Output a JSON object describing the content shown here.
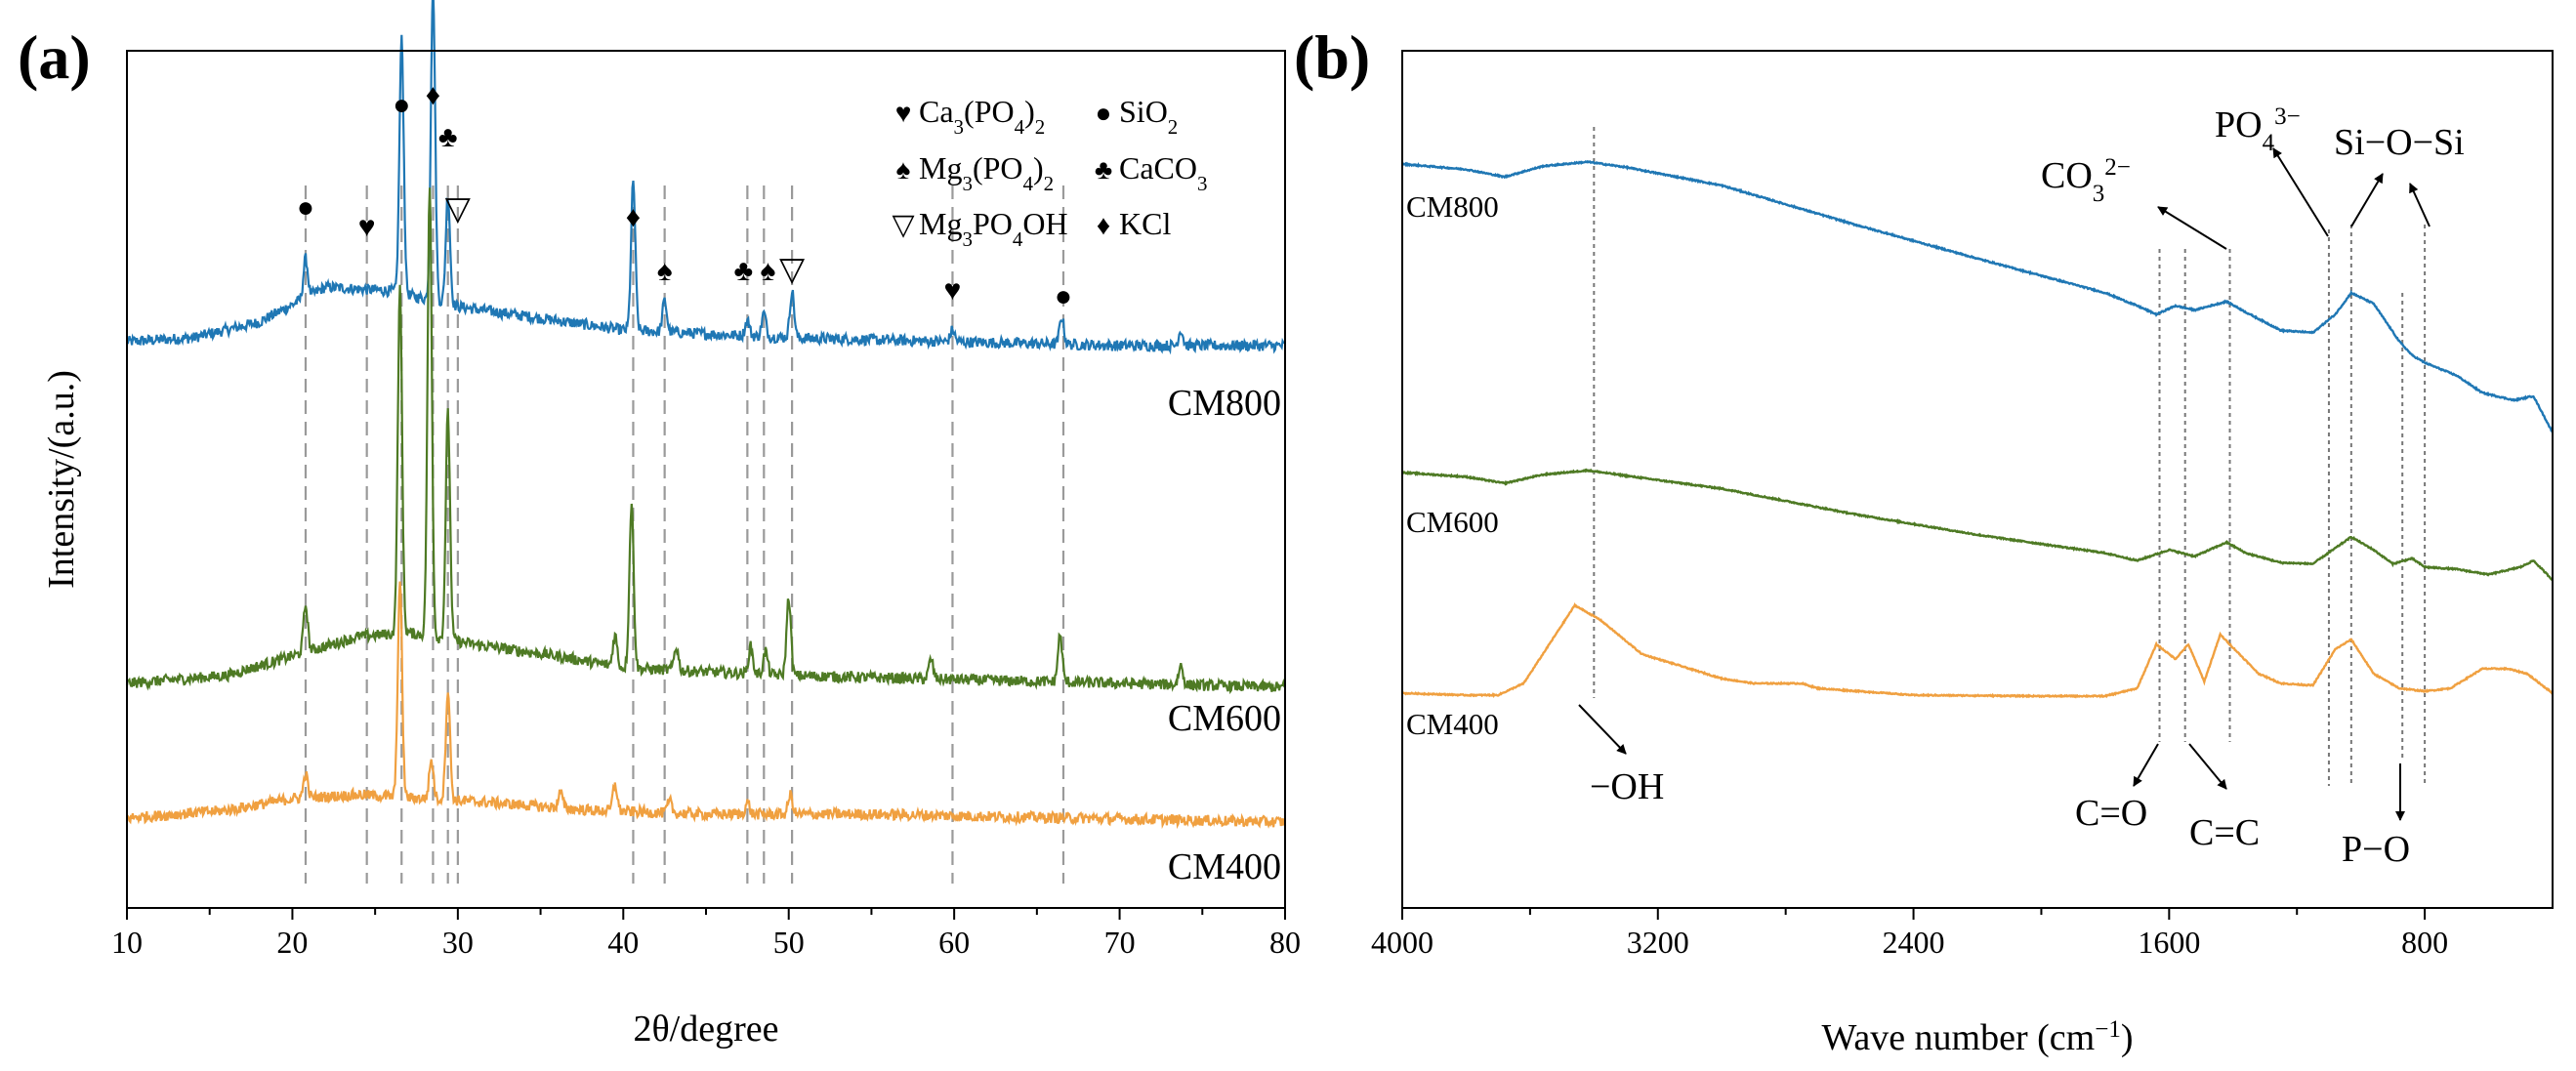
{
  "chart_data": [
    {
      "panel": "(a)",
      "type": "line",
      "xlabel": "2θ/degree",
      "ylabel": "Intensity/(a.u.)",
      "xlim": [
        10,
        80
      ],
      "xticks": [
        10,
        20,
        30,
        40,
        50,
        60,
        70,
        80
      ],
      "yticks_shown": false,
      "grid": false,
      "series": [
        {
          "name": "CM800",
          "color": "#1f77b4",
          "baseline": [
            [
              10,
              0.0
            ],
            [
              14,
              0.01
            ],
            [
              18,
              0.05
            ],
            [
              22,
              0.14
            ],
            [
              26,
              0.13
            ],
            [
              30,
              0.09
            ],
            [
              35,
              0.06
            ],
            [
              40,
              0.03
            ],
            [
              45,
              0.02
            ],
            [
              50,
              0.01
            ],
            [
              60,
              0.0
            ],
            [
              70,
              -0.01
            ],
            [
              80,
              -0.01
            ]
          ],
          "peaks": [
            [
              20.8,
              0.1
            ],
            [
              26.6,
              0.65
            ],
            [
              28.5,
              0.8
            ],
            [
              29.4,
              0.28
            ],
            [
              40.6,
              0.38
            ],
            [
              42.5,
              0.08
            ],
            [
              47.5,
              0.04
            ],
            [
              48.5,
              0.06
            ],
            [
              50.2,
              0.12
            ],
            [
              59.9,
              0.03
            ],
            [
              66.5,
              0.07
            ],
            [
              73.7,
              0.04
            ]
          ]
        },
        {
          "name": "CM600",
          "color": "#4e7a24",
          "baseline": [
            [
              10,
              0.0
            ],
            [
              16,
              0.02
            ],
            [
              20,
              0.07
            ],
            [
              24,
              0.12
            ],
            [
              27,
              0.13
            ],
            [
              31,
              0.1
            ],
            [
              36,
              0.07
            ],
            [
              40,
              0.04
            ],
            [
              45,
              0.03
            ],
            [
              50,
              0.02
            ],
            [
              60,
              0.01
            ],
            [
              70,
              0.0
            ],
            [
              80,
              -0.01
            ]
          ],
          "peaks": [
            [
              20.8,
              0.12
            ],
            [
              26.5,
              0.88
            ],
            [
              28.3,
              1.15
            ],
            [
              29.4,
              0.58
            ],
            [
              39.5,
              0.08
            ],
            [
              40.5,
              0.42
            ],
            [
              43.2,
              0.06
            ],
            [
              47.7,
              0.07
            ],
            [
              48.6,
              0.06
            ],
            [
              50.0,
              0.2
            ],
            [
              58.6,
              0.05
            ],
            [
              66.4,
              0.12
            ],
            [
              73.7,
              0.05
            ]
          ]
        },
        {
          "name": "CM400",
          "color": "#f0a040",
          "baseline": [
            [
              10,
              0.0
            ],
            [
              16,
              0.02
            ],
            [
              20,
              0.05
            ],
            [
              24,
              0.06
            ],
            [
              28,
              0.05
            ],
            [
              32,
              0.04
            ],
            [
              38,
              0.02
            ],
            [
              45,
              0.01
            ],
            [
              55,
              0.01
            ],
            [
              80,
              -0.01
            ]
          ],
          "peaks": [
            [
              20.8,
              0.06
            ],
            [
              26.5,
              0.55
            ],
            [
              28.4,
              0.1
            ],
            [
              29.4,
              0.28
            ],
            [
              36.2,
              0.04
            ],
            [
              39.5,
              0.07
            ],
            [
              42.8,
              0.03
            ],
            [
              47.5,
              0.03
            ],
            [
              50.1,
              0.05
            ]
          ]
        }
      ],
      "reference_lines": [
        {
          "x": 20.8,
          "symbol": "●",
          "phase": "SiO2"
        },
        {
          "x": 24.5,
          "symbol": "♥",
          "phase": "Ca3(PO4)2"
        },
        {
          "x": 26.6,
          "symbol": "●",
          "phase": "SiO2"
        },
        {
          "x": 28.5,
          "symbol": "♦",
          "phase": "KCl"
        },
        {
          "x": 29.4,
          "symbol": "♣",
          "phase": "CaCO3"
        },
        {
          "x": 30.0,
          "symbol": "▽",
          "phase": "Mg3PO4OH"
        },
        {
          "x": 40.6,
          "symbol": "♦",
          "phase": "KCl"
        },
        {
          "x": 42.5,
          "symbol": "♠",
          "phase": "Mg3(PO4)2"
        },
        {
          "x": 47.5,
          "symbol": "♣",
          "phase": "CaCO3"
        },
        {
          "x": 48.5,
          "symbol": "♠",
          "phase": "Mg3(PO4)2"
        },
        {
          "x": 50.2,
          "symbol": "▽",
          "phase": "Mg3PO4OH"
        },
        {
          "x": 59.9,
          "symbol": "♥",
          "phase": "Ca3(PO4)2"
        },
        {
          "x": 66.6,
          "symbol": "●",
          "phase": "SiO2"
        }
      ],
      "legend": {
        "placement": "top-right",
        "entries": [
          {
            "symbol": "♥",
            "parts": [
              [
                "Ca",
                "n"
              ],
              [
                "3",
                "sub"
              ],
              [
                "(PO",
                "n"
              ],
              [
                "4",
                "sub"
              ],
              [
                ")",
                "n"
              ],
              [
                "2",
                "sub"
              ]
            ]
          },
          {
            "symbol": "●",
            "parts": [
              [
                "SiO",
                "n"
              ],
              [
                "2",
                "sub"
              ]
            ]
          },
          {
            "symbol": "♠",
            "parts": [
              [
                "Mg",
                "n"
              ],
              [
                "3",
                "sub"
              ],
              [
                "(PO",
                "n"
              ],
              [
                "4",
                "sub"
              ],
              [
                ")",
                "n"
              ],
              [
                "2",
                "sub"
              ]
            ]
          },
          {
            "symbol": "♣",
            "parts": [
              [
                "CaCO",
                "n"
              ],
              [
                "3",
                "sub"
              ]
            ]
          },
          {
            "symbol": "▽",
            "parts": [
              [
                "Mg",
                "n"
              ],
              [
                "3",
                "sub"
              ],
              [
                "PO",
                "n"
              ],
              [
                "4",
                "sub"
              ],
              [
                "OH",
                "n"
              ]
            ]
          },
          {
            "symbol": "♦",
            "parts": [
              [
                "KCl",
                "n"
              ]
            ]
          }
        ]
      }
    },
    {
      "panel": "(b)",
      "type": "line",
      "xlabel_parts": [
        [
          "Wave number (cm",
          "n"
        ],
        [
          "−1",
          "sup"
        ],
        [
          ")",
          "n"
        ]
      ],
      "xlim": [
        4000,
        400
      ],
      "x_reversed": true,
      "xticks": [
        4000,
        3200,
        2400,
        1600,
        800
      ],
      "yticks_shown": false,
      "grid": false,
      "series": [
        {
          "name": "CM800",
          "color": "#1f77b4",
          "points": [
            [
              4000,
              0.0
            ],
            [
              3800,
              -0.05
            ],
            [
              3680,
              -0.12
            ],
            [
              3560,
              -0.02
            ],
            [
              3420,
              0.02
            ],
            [
              3300,
              -0.03
            ],
            [
              3000,
              -0.2
            ],
            [
              2600,
              -0.55
            ],
            [
              2200,
              -0.88
            ],
            [
              1800,
              -1.2
            ],
            [
              1700,
              -1.32
            ],
            [
              1640,
              -1.4
            ],
            [
              1580,
              -1.32
            ],
            [
              1520,
              -1.36
            ],
            [
              1420,
              -1.28
            ],
            [
              1360,
              -1.38
            ],
            [
              1250,
              -1.55
            ],
            [
              1150,
              -1.57
            ],
            [
              1080,
              -1.4
            ],
            [
              1030,
              -1.2
            ],
            [
              960,
              -1.3
            ],
            [
              880,
              -1.65
            ],
            [
              840,
              -1.78
            ],
            [
              800,
              -1.85
            ],
            [
              700,
              -1.97
            ],
            [
              620,
              -2.13
            ],
            [
              520,
              -2.2
            ],
            [
              460,
              -2.16
            ],
            [
              400,
              -2.5
            ]
          ]
        },
        {
          "name": "CM600",
          "color": "#4e7a24",
          "points": [
            [
              4000,
              0.0
            ],
            [
              3800,
              -0.04
            ],
            [
              3680,
              -0.1
            ],
            [
              3560,
              -0.02
            ],
            [
              3420,
              0.02
            ],
            [
              3300,
              -0.03
            ],
            [
              3000,
              -0.15
            ],
            [
              2600,
              -0.38
            ],
            [
              2200,
              -0.58
            ],
            [
              1800,
              -0.75
            ],
            [
              1700,
              -0.82
            ],
            [
              1600,
              -0.72
            ],
            [
              1520,
              -0.78
            ],
            [
              1420,
              -0.65
            ],
            [
              1360,
              -0.75
            ],
            [
              1250,
              -0.84
            ],
            [
              1150,
              -0.85
            ],
            [
              1030,
              -0.6
            ],
            [
              960,
              -0.72
            ],
            [
              900,
              -0.85
            ],
            [
              840,
              -0.8
            ],
            [
              800,
              -0.88
            ],
            [
              700,
              -0.9
            ],
            [
              600,
              -0.95
            ],
            [
              500,
              -0.88
            ],
            [
              460,
              -0.82
            ],
            [
              400,
              -1.0
            ]
          ]
        },
        {
          "name": "CM400",
          "color": "#f0a040",
          "points": [
            [
              4000,
              0.0
            ],
            [
              3800,
              -0.02
            ],
            [
              3700,
              -0.02
            ],
            [
              3620,
              0.1
            ],
            [
              3460,
              0.9
            ],
            [
              3380,
              0.75
            ],
            [
              3250,
              0.4
            ],
            [
              3000,
              0.15
            ],
            [
              2900,
              0.1
            ],
            [
              2750,
              0.1
            ],
            [
              2700,
              0.05
            ],
            [
              2400,
              -0.02
            ],
            [
              2000,
              -0.03
            ],
            [
              1800,
              -0.03
            ],
            [
              1700,
              0.05
            ],
            [
              1640,
              0.5
            ],
            [
              1580,
              0.35
            ],
            [
              1540,
              0.5
            ],
            [
              1490,
              0.12
            ],
            [
              1440,
              0.6
            ],
            [
              1380,
              0.4
            ],
            [
              1320,
              0.2
            ],
            [
              1250,
              0.1
            ],
            [
              1150,
              0.08
            ],
            [
              1080,
              0.45
            ],
            [
              1030,
              0.55
            ],
            [
              960,
              0.2
            ],
            [
              880,
              0.05
            ],
            [
              800,
              0.02
            ],
            [
              720,
              0.05
            ],
            [
              620,
              0.25
            ],
            [
              540,
              0.25
            ],
            [
              480,
              0.2
            ],
            [
              400,
              0.0
            ]
          ]
        }
      ],
      "reference_lines": [
        {
          "x": 3400
        },
        {
          "x": 1630
        },
        {
          "x": 1550
        },
        {
          "x": 1410
        },
        {
          "x": 1100
        },
        {
          "x": 1030
        },
        {
          "x": 870
        },
        {
          "x": 800
        }
      ],
      "annotations": [
        {
          "id": "oh",
          "parts": [
            [
              "−OH",
              "n"
            ]
          ]
        },
        {
          "id": "co3",
          "parts": [
            [
              "CO",
              "n"
            ],
            [
              "3",
              "sub"
            ],
            [
              "2−",
              "sup"
            ]
          ]
        },
        {
          "id": "po4",
          "parts": [
            [
              "PO",
              "n"
            ],
            [
              "4",
              "sub"
            ],
            [
              "3−",
              "sup"
            ]
          ]
        },
        {
          "id": "sios",
          "parts": [
            [
              "Si−O−Si",
              "n"
            ]
          ]
        },
        {
          "id": "co",
          "parts": [
            [
              "C=O",
              "n"
            ]
          ]
        },
        {
          "id": "cc",
          "parts": [
            [
              "C=C",
              "n"
            ]
          ]
        },
        {
          "id": "po",
          "parts": [
            [
              "P−O",
              "n"
            ]
          ]
        }
      ]
    }
  ]
}
